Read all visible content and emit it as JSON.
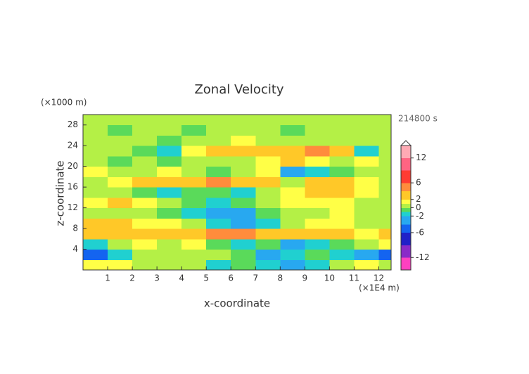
{
  "chart_data": {
    "type": "contour",
    "title": "Zonal Velocity",
    "y_unit": "(×1000 m)",
    "time_label": "214800 s",
    "x_unit": "(×1E4 m)",
    "xlabel": "x-coordinate",
    "ylabel": "z-coordinate",
    "xlim": [
      0,
      12.5
    ],
    "ylim": [
      0,
      30
    ],
    "xticks": [
      1,
      2,
      3,
      4,
      5,
      6,
      7,
      8,
      9,
      10,
      11,
      12
    ],
    "yticks": [
      4,
      8,
      12,
      16,
      20,
      24,
      28
    ],
    "x_edges": [
      0,
      1,
      2,
      3,
      4,
      5,
      6,
      7,
      8,
      9,
      10,
      11,
      12,
      12.5
    ],
    "z_edges": [
      0,
      2,
      4,
      6,
      8,
      10,
      12,
      14,
      16,
      18,
      20,
      22,
      24,
      26,
      28,
      30
    ],
    "z": [
      [
        1,
        1,
        0.5,
        0.5,
        0,
        -2,
        -1,
        -2,
        -3,
        -2,
        0,
        1,
        0.5
      ],
      [
        -5,
        -2,
        0,
        0,
        0.5,
        0,
        -1,
        -3,
        -2,
        -1,
        -2,
        -3,
        -5
      ],
      [
        -2,
        0.5,
        1,
        0.5,
        1,
        -1,
        -2,
        -1,
        -3,
        -2,
        -1,
        0,
        1
      ],
      [
        2,
        3,
        3,
        3,
        3,
        4,
        4,
        3,
        3,
        2,
        2,
        1,
        3
      ],
      [
        2,
        2,
        1,
        1,
        0,
        -2,
        -3,
        -2,
        0,
        1,
        1,
        0,
        0.5
      ],
      [
        0,
        0.5,
        0,
        -1,
        -2,
        -3,
        -4,
        -1,
        0,
        0.5,
        1,
        0.5,
        0
      ],
      [
        1,
        2,
        1,
        0,
        -1,
        -2,
        -1,
        0,
        1,
        1,
        1,
        0,
        0.5
      ],
      [
        0.5,
        0,
        -1,
        -2,
        -1,
        -1,
        -2,
        0,
        1,
        2,
        3,
        1,
        0.5
      ],
      [
        0,
        1,
        2,
        2,
        3,
        4,
        3,
        2,
        0.5,
        2,
        2,
        1,
        0.5
      ],
      [
        1,
        0.5,
        0,
        1,
        0,
        -1,
        0,
        1,
        -4,
        -2,
        -1,
        0,
        0.5
      ],
      [
        0.5,
        -1,
        0,
        -1,
        0,
        0.5,
        0,
        1,
        2,
        1,
        0,
        1,
        0.5
      ],
      [
        0,
        0.5,
        -1,
        -2,
        1,
        2,
        3,
        3,
        3,
        4,
        2,
        -2,
        0
      ],
      [
        0.5,
        0.5,
        0,
        -0.5,
        0.5,
        0,
        1,
        0.5,
        0,
        0.5,
        0,
        0.5,
        0
      ],
      [
        0,
        -0.5,
        0.5,
        0,
        -0.5,
        0,
        0.5,
        0,
        -0.5,
        0,
        0.5,
        0,
        0.5
      ],
      [
        0.5,
        0.5,
        0,
        0.5,
        0,
        0.5,
        0.5,
        0,
        0.5,
        0.5,
        0,
        0.5,
        0.5
      ]
    ],
    "levels": [
      -15,
      -12,
      -9,
      -6,
      -4,
      -2,
      -1,
      0,
      1,
      2,
      4,
      6,
      9,
      12,
      15
    ],
    "colors": [
      "#ff40c0",
      "#8a2ac8",
      "#2020c8",
      "#1464f0",
      "#28a8f0",
      "#20d0d0",
      "#5ada5a",
      "#b4f046",
      "#ffff46",
      "#ffc828",
      "#ff8c3c",
      "#ff3c32",
      "#ff6482",
      "#ffaab4"
    ],
    "clim": [
      -15,
      15
    ],
    "cticks": [
      12,
      6,
      2,
      0,
      -2,
      -6,
      -12
    ]
  }
}
